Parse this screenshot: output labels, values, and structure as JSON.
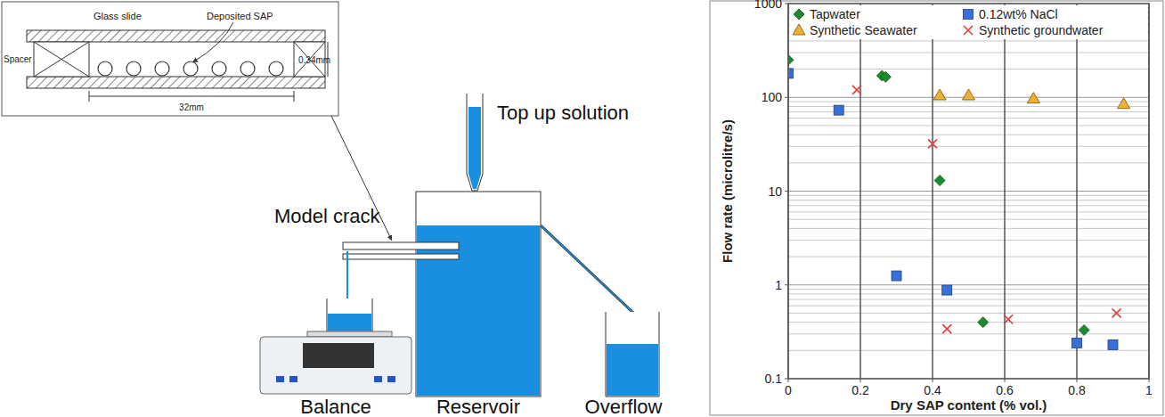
{
  "diagram": {
    "inset": {
      "top_label": "Glass slide",
      "pointer_label": "Deposited SAP",
      "side_label": "Spacer",
      "gap_label": "0.34mm",
      "length_label": "32mm"
    },
    "labels": {
      "top_up": "Top up solution",
      "model_crack": "Model crack",
      "balance": "Balance",
      "reservoir": "Reservoir",
      "overflow": "Overflow"
    }
  },
  "chart_data": {
    "type": "scatter",
    "x_label": "Dry SAP content (% vol.)",
    "y_label": "Flow rate (microlitre/s)",
    "xlim": [
      0,
      1
    ],
    "ylim": [
      0.1,
      1000
    ],
    "xticks": [
      0,
      0.2,
      0.4,
      0.6,
      0.8,
      1
    ],
    "yticks": [
      0.1,
      1,
      10,
      100,
      1000
    ],
    "log": "y",
    "grid": true,
    "legend": "top",
    "series": [
      {
        "name": "Tapwater",
        "color": "#1e8a2e",
        "marker": "diamond",
        "x": [
          0,
          0.26,
          0.27,
          0.42,
          0.54,
          0.82
        ],
        "values": [
          250,
          170,
          165,
          13,
          0.4,
          0.33
        ]
      },
      {
        "name": "0.12wt% NaCl",
        "color": "#3a6fd8",
        "marker": "square",
        "x": [
          0,
          0.14,
          0.3,
          0.44,
          0.8,
          0.9
        ],
        "values": [
          180,
          73,
          1.25,
          0.88,
          0.24,
          0.23
        ]
      },
      {
        "name": "Synthetic Seawater",
        "color": "#f0b030",
        "marker": "triangle",
        "x": [
          0.42,
          0.5,
          0.68,
          0.93
        ],
        "values": [
          105,
          105,
          97,
          85
        ]
      },
      {
        "name": "Synthetic groundwater",
        "color": "#e04040",
        "marker": "x",
        "x": [
          0.19,
          0.4,
          0.44,
          0.61,
          0.91
        ],
        "values": [
          120,
          32,
          0.34,
          0.43,
          0.5
        ]
      }
    ]
  }
}
